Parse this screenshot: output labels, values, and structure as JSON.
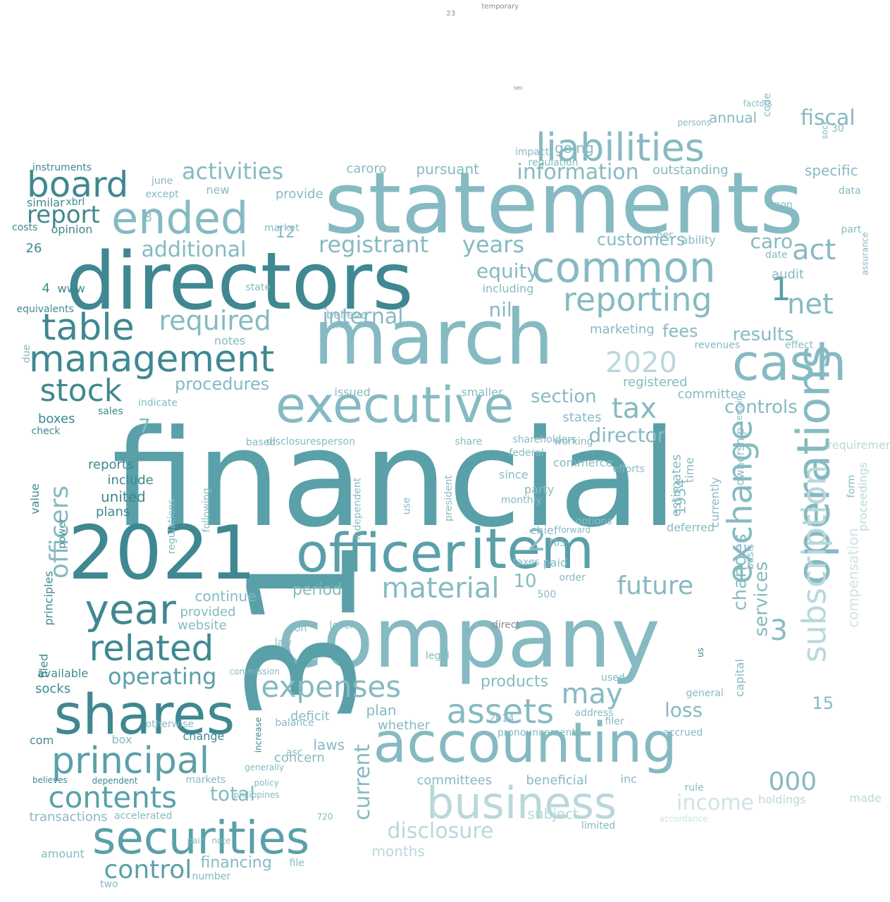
{
  "title": "Word cloud",
  "palette": {
    "dark": "#3f8891",
    "mid": "#5aa0a9",
    "light": "#86bac2",
    "pale": "#b9d8dc",
    "faint": "#cfe3e6",
    "gray": "#8a8a8a"
  },
  "words": [
    {
      "text": "financial",
      "tone": "mid"
    },
    {
      "text": "statements",
      "tone": "light"
    },
    {
      "text": "directors",
      "tone": "dark"
    },
    {
      "text": "march",
      "tone": "light"
    },
    {
      "text": "company",
      "tone": "light"
    },
    {
      "text": "31",
      "tone": "mid"
    },
    {
      "text": "2021",
      "tone": "dark"
    },
    {
      "text": "executive",
      "tone": "light"
    },
    {
      "text": "officer",
      "tone": "mid"
    },
    {
      "text": "item",
      "tone": "mid"
    },
    {
      "text": "shares",
      "tone": "dark"
    },
    {
      "text": "accounting",
      "tone": "light"
    },
    {
      "text": "business",
      "tone": "pale"
    },
    {
      "text": "securities",
      "tone": "mid"
    },
    {
      "text": "operations",
      "tone": "light"
    },
    {
      "text": "liabilities",
      "tone": "light"
    },
    {
      "text": "common",
      "tone": "light"
    },
    {
      "text": "cash",
      "tone": "light"
    },
    {
      "text": "board",
      "tone": "dark"
    },
    {
      "text": "ended",
      "tone": "light"
    },
    {
      "text": "management",
      "tone": "dark"
    },
    {
      "text": "table",
      "tone": "dark"
    },
    {
      "text": "stock",
      "tone": "dark"
    },
    {
      "text": "year",
      "tone": "dark"
    },
    {
      "text": "related",
      "tone": "dark"
    },
    {
      "text": "principal",
      "tone": "mid"
    },
    {
      "text": "contents",
      "tone": "mid"
    },
    {
      "text": "reporting",
      "tone": "light"
    },
    {
      "text": "exchange",
      "tone": "light"
    },
    {
      "text": "subscription",
      "tone": "pale"
    },
    {
      "text": "assets",
      "tone": "light"
    },
    {
      "text": "expenses",
      "tone": "light"
    },
    {
      "text": "material",
      "tone": "light"
    },
    {
      "text": "future",
      "tone": "light"
    },
    {
      "text": "act",
      "tone": "light"
    },
    {
      "text": "net",
      "tone": "light"
    },
    {
      "text": "registrant",
      "tone": "light"
    },
    {
      "text": "years",
      "tone": "light"
    },
    {
      "text": "activities",
      "tone": "light"
    },
    {
      "text": "required",
      "tone": "light"
    },
    {
      "text": "tax",
      "tone": "light"
    },
    {
      "text": "2020",
      "tone": "pale"
    },
    {
      "text": "officers",
      "tone": "light"
    },
    {
      "text": "control",
      "tone": "mid"
    },
    {
      "text": "operating",
      "tone": "mid"
    },
    {
      "text": "report",
      "tone": "dark"
    },
    {
      "text": "additional",
      "tone": "light"
    },
    {
      "text": "information",
      "tone": "light"
    },
    {
      "text": "disclosure",
      "tone": "pale"
    },
    {
      "text": "income",
      "tone": "faint"
    },
    {
      "text": "000",
      "tone": "light"
    },
    {
      "text": "may",
      "tone": "light"
    },
    {
      "text": "fiscal",
      "tone": "light"
    },
    {
      "text": "internal",
      "tone": "light"
    },
    {
      "text": "procedures",
      "tone": "light"
    },
    {
      "text": "section",
      "tone": "light"
    },
    {
      "text": "controls",
      "tone": "light"
    },
    {
      "text": "results",
      "tone": "light"
    },
    {
      "text": "products",
      "tone": "light"
    },
    {
      "text": "total",
      "tone": "light"
    },
    {
      "text": "current",
      "tone": "light"
    },
    {
      "text": "services",
      "tone": "light"
    },
    {
      "text": "director",
      "tone": "light"
    },
    {
      "text": "changes",
      "tone": "light"
    },
    {
      "text": "caro",
      "tone": "light"
    },
    {
      "text": "customers",
      "tone": "light"
    },
    {
      "text": "equity",
      "tone": "light"
    },
    {
      "text": "nil",
      "tone": "light"
    },
    {
      "text": "fees",
      "tone": "light"
    },
    {
      "text": "loss",
      "tone": "light"
    },
    {
      "text": "financing",
      "tone": "light"
    },
    {
      "text": "compensation",
      "tone": "faint"
    },
    {
      "text": "boxes",
      "tone": "dark"
    },
    {
      "text": "transactions",
      "tone": "light"
    },
    {
      "text": "2",
      "tone": "light"
    },
    {
      "text": "10",
      "tone": "light"
    },
    {
      "text": "15",
      "tone": "light"
    },
    {
      "text": "7",
      "tone": "light"
    },
    {
      "text": "3",
      "tone": "light"
    },
    {
      "text": "1",
      "tone": "mid"
    },
    {
      "text": "pursuant",
      "tone": "light"
    },
    {
      "text": "caroro",
      "tone": "light"
    },
    {
      "text": "going",
      "tone": "light"
    },
    {
      "text": "annual",
      "tone": "light"
    },
    {
      "text": "specific",
      "tone": "light"
    },
    {
      "text": "outstanding",
      "tone": "light"
    },
    {
      "text": "audit",
      "tone": "light"
    },
    {
      "text": "1934",
      "tone": "light"
    },
    {
      "text": "reports",
      "tone": "dark"
    },
    {
      "text": "include",
      "tone": "dark"
    },
    {
      "text": "united",
      "tone": "dark"
    },
    {
      "text": "plans",
      "tone": "dark"
    },
    {
      "text": "socks",
      "tone": "dark"
    },
    {
      "text": "provide",
      "tone": "light"
    },
    {
      "text": "marketing",
      "tone": "light"
    },
    {
      "text": "registered",
      "tone": "light"
    },
    {
      "text": "committee",
      "tone": "light"
    },
    {
      "text": "period",
      "tone": "light"
    },
    {
      "text": "continue",
      "tone": "light"
    },
    {
      "text": "provided",
      "tone": "light"
    },
    {
      "text": "website",
      "tone": "light"
    },
    {
      "text": "deficit",
      "tone": "light"
    },
    {
      "text": "whether",
      "tone": "light"
    },
    {
      "text": "plan",
      "tone": "light"
    },
    {
      "text": "laws",
      "tone": "light"
    },
    {
      "text": "concern",
      "tone": "light"
    },
    {
      "text": "committees",
      "tone": "light"
    },
    {
      "text": "beneficial",
      "tone": "light"
    },
    {
      "text": "months",
      "tone": "pale"
    },
    {
      "text": "subject",
      "tone": "pale"
    },
    {
      "text": "holdings",
      "tone": "pale"
    },
    {
      "text": "made",
      "tone": "pale"
    },
    {
      "text": "accordance",
      "tone": "faint"
    },
    {
      "text": "12",
      "tone": "light"
    },
    {
      "text": "8",
      "tone": "light"
    },
    {
      "text": "26",
      "tone": "dark"
    },
    {
      "text": "4",
      "tone": "dark"
    },
    {
      "text": "www",
      "tone": "dark"
    },
    {
      "text": "instruments",
      "tone": "dark"
    },
    {
      "text": "similar",
      "tone": "dark"
    },
    {
      "text": "opinion",
      "tone": "dark"
    },
    {
      "text": "costs",
      "tone": "dark"
    },
    {
      "text": "xbrl",
      "tone": "dark"
    },
    {
      "text": "june",
      "tone": "light"
    },
    {
      "text": "except",
      "tone": "light"
    },
    {
      "text": "new",
      "tone": "light"
    },
    {
      "text": "market",
      "tone": "light"
    },
    {
      "text": "state",
      "tone": "light"
    },
    {
      "text": "believe",
      "tone": "light"
    },
    {
      "text": "end",
      "tone": "light"
    },
    {
      "text": "notes",
      "tone": "light"
    },
    {
      "text": "issued",
      "tone": "light"
    },
    {
      "text": "smaller",
      "tone": "light"
    },
    {
      "text": "including",
      "tone": "light"
    },
    {
      "text": "impact",
      "tone": "light"
    },
    {
      "text": "regulation",
      "tone": "light"
    },
    {
      "text": "ability",
      "tone": "light"
    },
    {
      "text": "upon",
      "tone": "light"
    },
    {
      "text": "date",
      "tone": "light"
    },
    {
      "text": "part",
      "tone": "light"
    },
    {
      "text": "data",
      "tone": "light"
    },
    {
      "text": "sock",
      "tone": "light"
    },
    {
      "text": "30",
      "tone": "light"
    },
    {
      "text": "persons",
      "tone": "light"
    },
    {
      "text": "factors",
      "tone": "light"
    },
    {
      "text": "code",
      "tone": "light"
    },
    {
      "text": "per",
      "tone": "light"
    },
    {
      "text": "effect",
      "tone": "light"
    },
    {
      "text": "revenues",
      "tone": "light"
    },
    {
      "text": "assurance",
      "tone": "light"
    },
    {
      "text": "proceedings",
      "tone": "pale"
    },
    {
      "text": "requirements",
      "tone": "pale"
    },
    {
      "text": "form",
      "tone": "light"
    },
    {
      "text": "basis",
      "tone": "light"
    },
    {
      "text": "ownership",
      "tone": "light"
    },
    {
      "text": "currently",
      "tone": "light"
    },
    {
      "text": "certain",
      "tone": "light"
    },
    {
      "text": "capital",
      "tone": "light"
    },
    {
      "text": "time",
      "tone": "light"
    },
    {
      "text": "estimates",
      "tone": "light"
    },
    {
      "text": "deferred",
      "tone": "light"
    },
    {
      "text": "chief",
      "tone": "light"
    },
    {
      "text": "paid",
      "tone": "light"
    },
    {
      "text": "taxes",
      "tone": "light"
    },
    {
      "text": "500",
      "tone": "light"
    },
    {
      "text": "705",
      "tone": "light"
    },
    {
      "text": "order",
      "tone": "light"
    },
    {
      "text": "states",
      "tone": "light"
    },
    {
      "text": "party",
      "tone": "light"
    },
    {
      "text": "since",
      "tone": "light"
    },
    {
      "text": "commerce",
      "tone": "light"
    },
    {
      "text": "shareholders",
      "tone": "light"
    },
    {
      "text": "used",
      "tone": "light"
    },
    {
      "text": "address",
      "tone": "light"
    },
    {
      "text": "pronouncements",
      "tone": "light"
    },
    {
      "text": "filer",
      "tone": "light"
    },
    {
      "text": "2014",
      "tone": "light"
    },
    {
      "text": "inc",
      "tone": "light"
    },
    {
      "text": "rule",
      "tone": "light"
    },
    {
      "text": "limited",
      "tone": "light"
    },
    {
      "text": "accrued",
      "tone": "light"
    },
    {
      "text": "general",
      "tone": "light"
    },
    {
      "text": "us",
      "tone": "dark"
    },
    {
      "text": "com",
      "tone": "dark"
    },
    {
      "text": "amount",
      "tone": "light"
    },
    {
      "text": "change",
      "tone": "dark"
    },
    {
      "text": "box",
      "tone": "light"
    },
    {
      "text": "otherwise",
      "tone": "light"
    },
    {
      "text": "accelerated",
      "tone": "light"
    },
    {
      "text": "markets",
      "tone": "light"
    },
    {
      "text": "dependent",
      "tone": "dark"
    },
    {
      "text": "believes",
      "tone": "dark"
    },
    {
      "text": "two",
      "tone": "light"
    },
    {
      "text": "number",
      "tone": "light"
    },
    {
      "text": "file",
      "tone": "light"
    },
    {
      "text": "pair",
      "tone": "light"
    },
    {
      "text": "note",
      "tone": "light"
    },
    {
      "text": "balance",
      "tone": "light"
    },
    {
      "text": "asc",
      "tone": "light"
    },
    {
      "text": "policy",
      "tone": "light"
    },
    {
      "text": "generally",
      "tone": "light"
    },
    {
      "text": "philippines",
      "tone": "light"
    },
    {
      "text": "720",
      "tone": "light"
    },
    {
      "text": "increase",
      "tone": "dark"
    },
    {
      "text": "value",
      "tone": "dark"
    },
    {
      "text": "filed",
      "tone": "dark"
    },
    {
      "text": "available",
      "tone": "dark"
    },
    {
      "text": "principles",
      "tone": "dark"
    },
    {
      "text": "power",
      "tone": "dark"
    },
    {
      "text": "check",
      "tone": "dark"
    },
    {
      "text": "sales",
      "tone": "dark"
    },
    {
      "text": "equivalents",
      "tone": "dark"
    },
    {
      "text": "due",
      "tone": "light"
    },
    {
      "text": "indicate",
      "tone": "light"
    },
    {
      "text": "based",
      "tone": "light"
    },
    {
      "text": "disclosures",
      "tone": "light"
    },
    {
      "text": "person",
      "tone": "light"
    },
    {
      "text": "regulations",
      "tone": "light"
    },
    {
      "text": "following",
      "tone": "light"
    },
    {
      "text": "independent",
      "tone": "light"
    },
    {
      "text": "president",
      "tone": "light"
    },
    {
      "text": "use",
      "tone": "light"
    },
    {
      "text": "federal",
      "tone": "light"
    },
    {
      "text": "working",
      "tone": "light"
    },
    {
      "text": "efforts",
      "tone": "light"
    },
    {
      "text": "monthly",
      "tone": "light"
    },
    {
      "text": "options",
      "tone": "light"
    },
    {
      "text": "forward",
      "tone": "light"
    },
    {
      "text": "share",
      "tone": "light"
    },
    {
      "text": "non",
      "tone": "light"
    },
    {
      "text": "level",
      "tone": "light"
    },
    {
      "text": "law",
      "tone": "light"
    },
    {
      "text": "commission",
      "tone": "light"
    },
    {
      "text": "legal",
      "tone": "light"
    },
    {
      "text": "direct",
      "tone": "gray"
    },
    {
      "text": "temporary",
      "tone": "gray"
    },
    {
      "text": "23",
      "tone": "gray"
    },
    {
      "text": "sec",
      "tone": "gray"
    }
  ]
}
